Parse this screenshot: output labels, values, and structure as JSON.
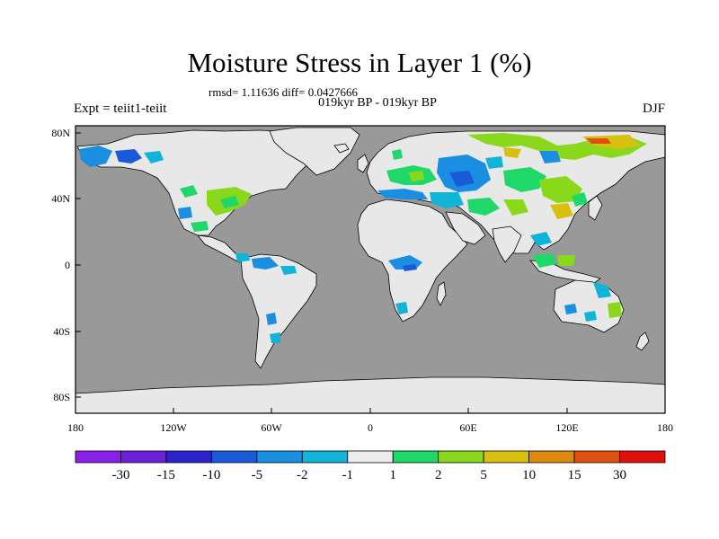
{
  "title": "Moisture Stress in Layer 1 (%)",
  "stats_line": "rmsd= 1.11636 diff= 0.0427666",
  "subtitle": "019kyr BP - 019kyr BP",
  "left_label": "Expt = teiit1-teiit",
  "right_label": "DJF",
  "map": {
    "x_ticks": [
      "180",
      "120W",
      "60W",
      "0",
      "60E",
      "120E",
      "180"
    ],
    "y_ticks": [
      "80N",
      "40N",
      "0",
      "40S",
      "80S"
    ],
    "ocean_color": "#999999",
    "land_color": "#e8e8e8"
  },
  "colorbar": {
    "labels": [
      "-30",
      "-15",
      "-10",
      "-5",
      "-2",
      "-1",
      "1",
      "2",
      "5",
      "10",
      "15",
      "30"
    ],
    "colors": [
      "#8a1fe8",
      "#6a1fd8",
      "#2b22cc",
      "#1a5ad8",
      "#1a8ee0",
      "#10b4d8",
      "#ececec",
      "#20d86a",
      "#8ad81c",
      "#d8c010",
      "#e0880e",
      "#e0500e",
      "#e01010"
    ]
  }
}
